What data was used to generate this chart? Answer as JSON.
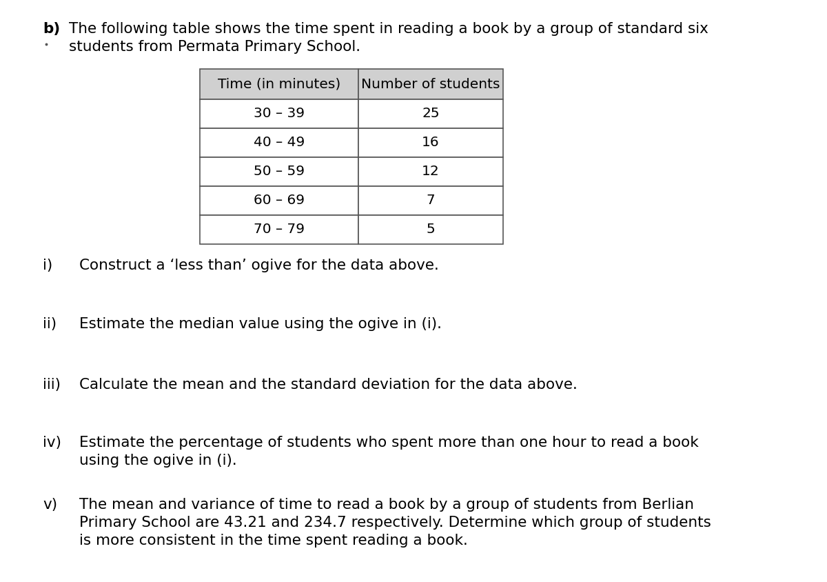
{
  "background_color": "#ffffff",
  "header_bg": "#d0d0d0",
  "title_line1": "The following table shows the time spent in reading a book by a group of standard six",
  "title_line2": "students from Permata Primary School.",
  "table_headers": [
    "Time (in minutes)",
    "Number of students"
  ],
  "table_rows": [
    [
      "30 – 39",
      "25"
    ],
    [
      "40 – 49",
      "16"
    ],
    [
      "50 – 59",
      "12"
    ],
    [
      "60 – 69",
      "7"
    ],
    [
      "70 – 79",
      "5"
    ]
  ],
  "questions": [
    {
      "label": "i)",
      "lines": [
        "Construct a ‘less than’ ogive for the data above."
      ]
    },
    {
      "label": "ii)",
      "lines": [
        "Estimate the median value using the ogive in (i)."
      ]
    },
    {
      "label": "iii)",
      "lines": [
        "Calculate the mean and the standard deviation for the data above."
      ]
    },
    {
      "label": "iv)",
      "lines": [
        "Estimate the percentage of students who spent more than one hour to read a book",
        "using the ogive in (i)."
      ]
    },
    {
      "label": "v)",
      "lines": [
        "The mean and variance of time to read a book by a group of students from Berlian",
        "Primary School are 43.21 and 234.7 respectively. Determine which group of students",
        "is more consistent in the time spent reading a book."
      ]
    }
  ],
  "font_size_heading": 15.5,
  "font_size_table": 14.5,
  "font_size_questions": 15.5
}
